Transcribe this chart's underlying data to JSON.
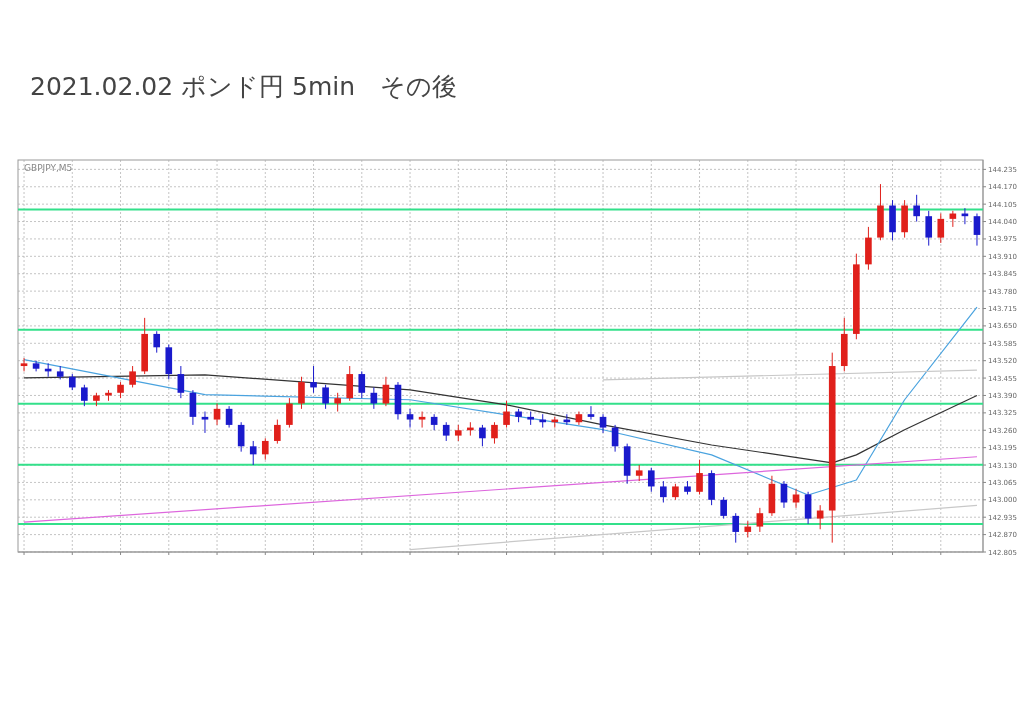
{
  "chart_data": {
    "type": "candlestick",
    "title": "2021.02.02  ポンド円 5min　その後",
    "annotations": [
      "GBPJPY,M5"
    ],
    "tick_labels": "y",
    "grid": true,
    "ylim": [
      142.805,
      144.27
    ],
    "yticks": [
      {
        "value": 144.235,
        "label": "144.235"
      },
      {
        "value": 144.17,
        "label": "144.170"
      },
      {
        "value": 144.105,
        "label": "144.105"
      },
      {
        "value": 144.04,
        "label": "144.040"
      },
      {
        "value": 143.975,
        "label": "143.975"
      },
      {
        "value": 143.91,
        "label": "143.910"
      },
      {
        "value": 143.845,
        "label": "143.845"
      },
      {
        "value": 143.78,
        "label": "143.780"
      },
      {
        "value": 143.715,
        "label": "143.715"
      },
      {
        "value": 143.65,
        "label": "143.650"
      },
      {
        "value": 143.585,
        "label": "143.585"
      },
      {
        "value": 143.52,
        "label": "143.520"
      },
      {
        "value": 143.455,
        "label": "143.455"
      },
      {
        "value": 143.39,
        "label": "143.390"
      },
      {
        "value": 143.325,
        "label": "143.325"
      },
      {
        "value": 143.26,
        "label": "143.260"
      },
      {
        "value": 143.195,
        "label": "143.195"
      },
      {
        "value": 143.13,
        "label": "143.130"
      },
      {
        "value": 143.065,
        "label": "143.065"
      },
      {
        "value": 143.0,
        "label": "143.000"
      },
      {
        "value": 142.935,
        "label": "142.935"
      },
      {
        "value": 142.87,
        "label": "142.870"
      },
      {
        "value": 142.805,
        "label": "142.805"
      }
    ],
    "categories": [
      null,
      null,
      null,
      null,
      null,
      null,
      null,
      null,
      null,
      null,
      null,
      null,
      null,
      null,
      null,
      null,
      null,
      null,
      null,
      null,
      null,
      null,
      null,
      null,
      null,
      null,
      null,
      null,
      null,
      null,
      null,
      null,
      null,
      null,
      null,
      null,
      null,
      null,
      null,
      null,
      null,
      null,
      null,
      null,
      null,
      null,
      null,
      null,
      null,
      null,
      null,
      null,
      null,
      null,
      null,
      null,
      null,
      null,
      null,
      null,
      null,
      null,
      null,
      null,
      null,
      null,
      null,
      null,
      null,
      null,
      null,
      null,
      null,
      null,
      null,
      null,
      null,
      null,
      null,
      null
    ],
    "ohlc": [
      [
        143.5,
        143.53,
        143.48,
        143.51
      ],
      [
        143.51,
        143.52,
        143.48,
        143.49
      ],
      [
        143.49,
        143.51,
        143.46,
        143.48
      ],
      [
        143.48,
        143.5,
        143.45,
        143.46
      ],
      [
        143.46,
        143.47,
        143.41,
        143.42
      ],
      [
        143.42,
        143.43,
        143.35,
        143.37
      ],
      [
        143.37,
        143.4,
        143.35,
        143.39
      ],
      [
        143.39,
        143.41,
        143.37,
        143.4
      ],
      [
        143.4,
        143.44,
        143.38,
        143.43
      ],
      [
        143.43,
        143.5,
        143.42,
        143.48
      ],
      [
        143.48,
        143.68,
        143.47,
        143.62
      ],
      [
        143.62,
        143.63,
        143.55,
        143.57
      ],
      [
        143.57,
        143.58,
        143.45,
        143.47
      ],
      [
        143.47,
        143.5,
        143.38,
        143.4
      ],
      [
        143.4,
        143.41,
        143.28,
        143.31
      ],
      [
        143.31,
        143.33,
        143.25,
        143.3
      ],
      [
        143.3,
        143.36,
        143.28,
        143.34
      ],
      [
        143.34,
        143.35,
        143.27,
        143.28
      ],
      [
        143.28,
        143.29,
        143.18,
        143.2
      ],
      [
        143.2,
        143.22,
        143.13,
        143.17
      ],
      [
        143.17,
        143.23,
        143.15,
        143.22
      ],
      [
        143.22,
        143.3,
        143.21,
        143.28
      ],
      [
        143.28,
        143.38,
        143.27,
        143.36
      ],
      [
        143.36,
        143.46,
        143.34,
        143.44
      ],
      [
        143.44,
        143.5,
        143.4,
        143.42
      ],
      [
        143.42,
        143.43,
        143.34,
        143.36
      ],
      [
        143.36,
        143.4,
        143.33,
        143.38
      ],
      [
        143.38,
        143.5,
        143.37,
        143.47
      ],
      [
        143.47,
        143.48,
        143.38,
        143.4
      ],
      [
        143.4,
        143.42,
        143.34,
        143.36
      ],
      [
        143.36,
        143.46,
        143.35,
        143.43
      ],
      [
        143.43,
        143.44,
        143.3,
        143.32
      ],
      [
        143.32,
        143.34,
        143.27,
        143.3
      ],
      [
        143.3,
        143.33,
        143.27,
        143.31
      ],
      [
        143.31,
        143.32,
        143.26,
        143.28
      ],
      [
        143.28,
        143.29,
        143.22,
        143.24
      ],
      [
        143.24,
        143.28,
        143.22,
        143.26
      ],
      [
        143.26,
        143.29,
        143.24,
        143.27
      ],
      [
        143.27,
        143.28,
        143.2,
        143.23
      ],
      [
        143.23,
        143.29,
        143.21,
        143.28
      ],
      [
        143.28,
        143.37,
        143.27,
        143.33
      ],
      [
        143.33,
        143.34,
        143.29,
        143.31
      ],
      [
        143.31,
        143.33,
        143.28,
        143.3
      ],
      [
        143.3,
        143.32,
        143.27,
        143.29
      ],
      [
        143.29,
        143.31,
        143.27,
        143.3
      ],
      [
        143.3,
        143.32,
        143.28,
        143.29
      ],
      [
        143.29,
        143.33,
        143.28,
        143.32
      ],
      [
        143.32,
        143.35,
        143.3,
        143.31
      ],
      [
        143.31,
        143.32,
        143.25,
        143.27
      ],
      [
        143.27,
        143.28,
        143.18,
        143.2
      ],
      [
        143.2,
        143.21,
        143.06,
        143.09
      ],
      [
        143.09,
        143.13,
        143.07,
        143.11
      ],
      [
        143.11,
        143.12,
        143.03,
        143.05
      ],
      [
        143.05,
        143.07,
        142.99,
        143.01
      ],
      [
        143.01,
        143.06,
        143.0,
        143.05
      ],
      [
        143.05,
        143.07,
        143.02,
        143.03
      ],
      [
        143.03,
        143.15,
        143.02,
        143.1
      ],
      [
        143.1,
        143.11,
        142.98,
        143.0
      ],
      [
        143.0,
        143.01,
        142.93,
        142.94
      ],
      [
        142.94,
        142.95,
        142.84,
        142.88
      ],
      [
        142.88,
        142.92,
        142.86,
        142.9
      ],
      [
        142.9,
        142.97,
        142.88,
        142.95
      ],
      [
        142.95,
        143.09,
        142.94,
        143.06
      ],
      [
        143.06,
        143.07,
        142.97,
        142.99
      ],
      [
        142.99,
        143.04,
        142.97,
        143.02
      ],
      [
        143.02,
        143.03,
        142.91,
        142.93
      ],
      [
        142.93,
        142.98,
        142.89,
        142.96
      ],
      [
        142.96,
        143.55,
        142.84,
        143.5
      ],
      [
        143.5,
        143.68,
        143.48,
        143.62
      ],
      [
        143.62,
        143.92,
        143.6,
        143.88
      ],
      [
        143.88,
        144.02,
        143.86,
        143.98
      ],
      [
        143.98,
        144.18,
        143.97,
        144.1
      ],
      [
        144.1,
        144.12,
        143.97,
        144.0
      ],
      [
        144.0,
        144.12,
        143.98,
        144.1
      ],
      [
        144.1,
        144.14,
        144.04,
        144.06
      ],
      [
        144.06,
        144.08,
        143.95,
        143.98
      ],
      [
        143.98,
        144.07,
        143.96,
        144.05
      ],
      [
        144.05,
        144.08,
        144.02,
        144.07
      ],
      [
        144.07,
        144.09,
        144.03,
        144.06
      ],
      [
        144.06,
        144.07,
        143.95,
        143.99
      ]
    ],
    "colors": [
      "#e0201b",
      "#1a1acc",
      "#1a1acc",
      "#1a1acc",
      "#1a1acc",
      "#1a1acc",
      "#e0201b",
      "#e0201b",
      "#e0201b",
      "#e0201b",
      "#e0201b",
      "#1a1acc",
      "#1a1acc",
      "#1a1acc",
      "#1a1acc",
      "#1a1acc",
      "#e0201b",
      "#1a1acc",
      "#1a1acc",
      "#1a1acc",
      "#e0201b",
      "#e0201b",
      "#e0201b",
      "#e0201b",
      "#1a1acc",
      "#1a1acc",
      "#e0201b",
      "#e0201b",
      "#1a1acc",
      "#1a1acc",
      "#e0201b",
      "#1a1acc",
      "#1a1acc",
      "#e0201b",
      "#1a1acc",
      "#1a1acc",
      "#e0201b",
      "#e0201b",
      "#1a1acc",
      "#e0201b",
      "#e0201b",
      "#1a1acc",
      "#1a1acc",
      "#1a1acc",
      "#e0201b",
      "#1a1acc",
      "#e0201b",
      "#1a1acc",
      "#1a1acc",
      "#1a1acc",
      "#1a1acc",
      "#e0201b",
      "#1a1acc",
      "#1a1acc",
      "#e0201b",
      "#1a1acc",
      "#e0201b",
      "#1a1acc",
      "#1a1acc",
      "#1a1acc",
      "#e0201b",
      "#e0201b",
      "#e0201b",
      "#1a1acc",
      "#e0201b",
      "#1a1acc",
      "#e0201b",
      "#e0201b",
      "#e0201b",
      "#e0201b",
      "#e0201b",
      "#e0201b",
      "#1a1acc",
      "#e0201b",
      "#1a1acc",
      "#1a1acc",
      "#e0201b",
      "#e0201b",
      "#1a1acc",
      "#1a1acc"
    ],
    "series": [
      {
        "type": "line",
        "color": "#333333",
        "values": [
          143.456,
          null,
          null,
          null,
          null,
          null,
          null,
          null,
          null,
          null,
          null,
          null,
          null,
          null,
          null,
          143.467,
          null,
          null,
          null,
          null,
          null,
          null,
          null,
          null,
          null,
          null,
          null,
          null,
          null,
          null,
          null,
          null,
          143.411,
          null,
          null,
          null,
          null,
          null,
          null,
          null,
          143.355,
          null,
          null,
          null,
          null,
          null,
          null,
          null,
          143.28,
          null,
          null,
          null,
          null,
          null,
          null,
          null,
          null,
          143.205,
          null,
          null,
          null,
          null,
          null,
          null,
          null,
          null,
          null,
          143.138,
          null,
          143.168,
          null,
          null,
          null,
          143.262,
          null,
          null,
          null,
          null,
          null,
          143.39
        ]
      },
      {
        "type": "line",
        "color": "#4aa3df",
        "values": [
          143.524,
          null,
          null,
          null,
          null,
          null,
          null,
          null,
          null,
          null,
          null,
          null,
          null,
          null,
          null,
          143.393,
          null,
          null,
          null,
          null,
          null,
          null,
          null,
          null,
          null,
          null,
          null,
          null,
          null,
          null,
          null,
          null,
          143.374,
          null,
          null,
          null,
          null,
          null,
          null,
          null,
          null,
          null,
          null,
          null,
          null,
          null,
          null,
          null,
          143.262,
          null,
          null,
          null,
          null,
          null,
          null,
          null,
          null,
          143.168,
          null,
          null,
          null,
          null,
          null,
          null,
          null,
          143.018,
          null,
          null,
          null,
          143.074,
          null,
          null,
          null,
          143.374,
          null,
          null,
          null,
          null,
          null,
          143.72
        ]
      },
      {
        "type": "line",
        "color": "#dd66dd",
        "values": [
          142.917,
          null,
          null,
          null,
          null,
          null,
          null,
          null,
          null,
          null,
          null,
          null,
          null,
          null,
          null,
          null,
          null,
          null,
          null,
          null,
          null,
          null,
          null,
          null,
          null,
          null,
          null,
          null,
          null,
          null,
          null,
          null,
          null,
          null,
          null,
          null,
          null,
          null,
          null,
          null,
          null,
          null,
          null,
          null,
          null,
          null,
          null,
          null,
          null,
          null,
          null,
          null,
          null,
          null,
          null,
          null,
          null,
          null,
          null,
          null,
          null,
          null,
          null,
          null,
          null,
          null,
          null,
          null,
          null,
          null,
          null,
          null,
          null,
          null,
          null,
          null,
          null,
          null,
          null,
          143.161
        ]
      },
      {
        "type": "line",
        "color": "#c8c8c8",
        "values": [
          null,
          null,
          null,
          null,
          null,
          null,
          null,
          null,
          null,
          null,
          null,
          null,
          null,
          null,
          null,
          null,
          null,
          null,
          null,
          null,
          null,
          null,
          null,
          null,
          null,
          null,
          null,
          null,
          null,
          null,
          null,
          null,
          142.814,
          null,
          null,
          null,
          null,
          null,
          null,
          null,
          null,
          null,
          null,
          null,
          null,
          null,
          null,
          null,
          null,
          null,
          null,
          null,
          null,
          null,
          null,
          null,
          null,
          null,
          null,
          null,
          null,
          null,
          null,
          null,
          null,
          null,
          null,
          null,
          null,
          null,
          null,
          null,
          null,
          null,
          null,
          null,
          null,
          null,
          null,
          142.979
        ]
      },
      {
        "type": "line",
        "color": "#c8c8c8",
        "values": [
          null,
          null,
          null,
          null,
          null,
          null,
          null,
          null,
          null,
          null,
          null,
          null,
          null,
          null,
          null,
          null,
          null,
          null,
          null,
          null,
          null,
          null,
          null,
          null,
          null,
          null,
          null,
          null,
          null,
          null,
          null,
          null,
          null,
          null,
          null,
          null,
          null,
          null,
          null,
          null,
          null,
          null,
          null,
          null,
          null,
          null,
          null,
          null,
          143.448,
          null,
          null,
          null,
          null,
          null,
          null,
          null,
          null,
          null,
          null,
          null,
          null,
          null,
          null,
          null,
          null,
          null,
          null,
          null,
          null,
          null,
          null,
          null,
          null,
          null,
          null,
          null,
          null,
          null,
          null,
          143.485
        ]
      }
    ],
    "ref_lines": [
      {
        "axis": "y",
        "value": 144.085,
        "color": "#33e08a"
      },
      {
        "axis": "y",
        "value": 143.636,
        "color": "#33e08a"
      },
      {
        "axis": "y",
        "value": 143.359,
        "color": "#33e08a"
      },
      {
        "axis": "y",
        "value": 143.131,
        "color": "#33e08a"
      },
      {
        "axis": "y",
        "value": 142.91,
        "color": "#33e08a"
      }
    ]
  }
}
